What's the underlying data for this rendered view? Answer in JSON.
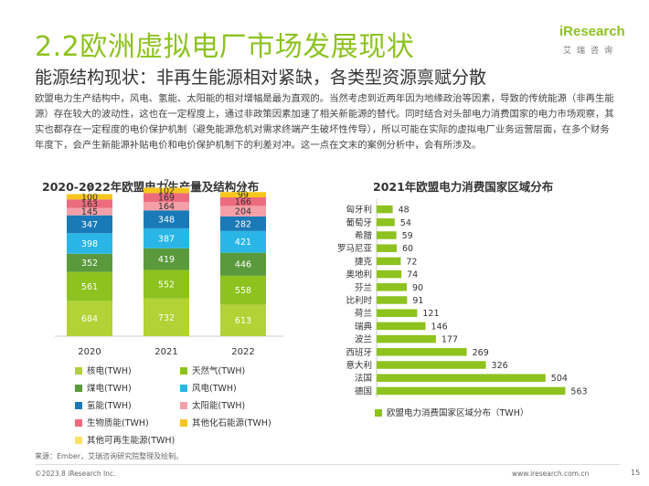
{
  "header": {
    "title": "2.2欧洲虚拟电厂市场发展现状",
    "logo_brand": "iResearch",
    "logo_cn": "艾瑞咨询"
  },
  "subtitle": "能源结构现状：非再生能源相对紧缺，各类型资源禀赋分散",
  "body_text": "欧盟电力生产结构中，风电、氢能、太阳能的相对增幅是最为直观的。当然考虑到近两年因为地缘政治等因素，导致的传统能源（非再生能源）存在较大的波动性，这也在一定程度上，通过非政策因素加速了相关新能源的替代。同时结合对头部电力消费国家的电力市场观察，其实也都存在一定程度的电价保护机制（避免能源危机对需求终端产生破坏性传导），所以可能在实际的虚拟电厂业务运营层面，在多个财务年度下，会产生新能源补贴电价和电价保护机制下的利差对冲。这一点在文末的案例分析中，会有所涉及。",
  "chart_data": [
    {
      "type": "bar",
      "stacked": true,
      "title": "2020-2022年欧盟电力生产量及结构分布",
      "categories": [
        "2020",
        "2021",
        "2022"
      ],
      "series": [
        {
          "name": "核电(TWH)",
          "color": "#b2d235",
          "values": [
            684,
            732,
            613
          ]
        },
        {
          "name": "天然气(TWH)",
          "color": "#8dc21f",
          "values": [
            561,
            552,
            558
          ]
        },
        {
          "name": "煤电(TWH)",
          "color": "#5a9a3c",
          "values": [
            352,
            419,
            446
          ]
        },
        {
          "name": "风电(TWH)",
          "color": "#29b6e6",
          "values": [
            398,
            387,
            421
          ]
        },
        {
          "name": "氢能(TWH)",
          "color": "#1a7ab8",
          "values": [
            347,
            348,
            282
          ]
        },
        {
          "name": "太阳能(TWH)",
          "color": "#f4a0a8",
          "values": [
            145,
            164,
            204
          ]
        },
        {
          "name": "生物质能(TWH)",
          "color": "#ec6b7d",
          "values": [
            163,
            169,
            166
          ]
        },
        {
          "name": "其他化石能源(TWH)",
          "color": "#f7c51e",
          "values": [
            100,
            102,
            99
          ]
        },
        {
          "name": "其他可再生能源(TWH)",
          "color": "#fbe36a",
          "values": [
            7,
            7,
            7
          ]
        }
      ]
    },
    {
      "type": "bar",
      "orientation": "horizontal",
      "title": "2021年欧盟电力消费国家区域分布",
      "categories": [
        "匈牙利",
        "葡萄牙",
        "希腊",
        "罗马尼亚",
        "捷克",
        "奥地利",
        "芬兰",
        "比利时",
        "荷兰",
        "瑞典",
        "波兰",
        "西班牙",
        "意大利",
        "法国",
        "德国"
      ],
      "values": [
        48,
        54,
        59,
        60,
        72,
        74,
        90,
        91,
        121,
        146,
        177,
        269,
        326,
        504,
        563
      ],
      "series_name": "欧盟电力消费国家区域分布（TWH）",
      "color": "#8dc21f",
      "xlim": [
        0,
        600
      ]
    }
  ],
  "source": "来源：Ember，艾瑞咨询研究院整理及绘制。",
  "footer": {
    "copyright": "©2023.8 iResearch Inc.",
    "website": "www.iresearch.com.cn",
    "page": "15"
  }
}
